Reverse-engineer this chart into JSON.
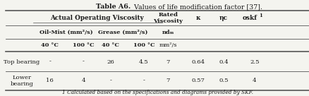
{
  "title_bold": "Table A6.",
  "title_normal": " Values of life modification factor [37].",
  "footnote": "1 Calculated based on the specifications and diagrams provided by SKF.",
  "bg_color": "#f4f4ef",
  "text_color": "#1a1a1a",
  "line_color": "#555555"
}
